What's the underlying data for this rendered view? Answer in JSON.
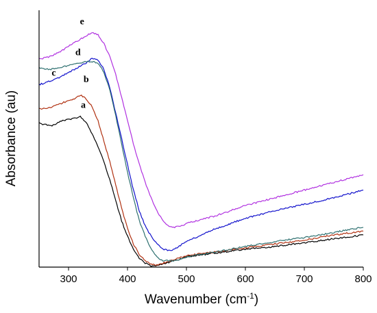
{
  "chart_data": {
    "type": "line",
    "title": "",
    "xlabel_main": "Wavenumber (cm",
    "xlabel_sup": "-1",
    "xlabel_end": ")",
    "ylabel": "Absorbance (au)",
    "xlim": [
      250,
      800
    ],
    "ylim": [
      0,
      1
    ],
    "y_ticks_shown": false,
    "xticks": [
      300,
      400,
      500,
      600,
      700,
      800
    ],
    "grid": false,
    "legend": "none",
    "series": [
      {
        "name": "a",
        "color": "#000000",
        "x": [
          250,
          270,
          290,
          310,
          320,
          330,
          340,
          350,
          360,
          370,
          380,
          390,
          400,
          410,
          420,
          430,
          440,
          450,
          460,
          480,
          500,
          550,
          600,
          650,
          700,
          750,
          800
        ],
        "y": [
          0.56,
          0.55,
          0.57,
          0.58,
          0.585,
          0.565,
          0.52,
          0.47,
          0.41,
          0.34,
          0.26,
          0.18,
          0.12,
          0.07,
          0.035,
          0.015,
          0.005,
          0.005,
          0.012,
          0.025,
          0.04,
          0.055,
          0.07,
          0.08,
          0.095,
          0.11,
          0.125
        ]
      },
      {
        "name": "b",
        "color": "#b03010",
        "x": [
          250,
          270,
          290,
          310,
          320,
          330,
          340,
          350,
          360,
          370,
          380,
          390,
          400,
          410,
          420,
          430,
          440,
          450,
          460,
          480,
          500,
          550,
          600,
          650,
          700,
          750,
          800
        ],
        "y": [
          0.615,
          0.62,
          0.64,
          0.655,
          0.67,
          0.655,
          0.625,
          0.57,
          0.49,
          0.41,
          0.32,
          0.23,
          0.15,
          0.09,
          0.05,
          0.025,
          0.01,
          0.008,
          0.015,
          0.03,
          0.045,
          0.06,
          0.075,
          0.09,
          0.105,
          0.125,
          0.14
        ]
      },
      {
        "name": "c",
        "color": "#1010cc",
        "x": [
          250,
          270,
          290,
          310,
          330,
          340,
          350,
          360,
          370,
          380,
          390,
          400,
          410,
          420,
          430,
          440,
          450,
          460,
          470,
          480,
          490,
          500,
          550,
          600,
          650,
          700,
          750,
          800
        ],
        "y": [
          0.71,
          0.725,
          0.745,
          0.77,
          0.795,
          0.815,
          0.805,
          0.77,
          0.7,
          0.6,
          0.5,
          0.4,
          0.3,
          0.22,
          0.16,
          0.12,
          0.09,
          0.07,
          0.065,
          0.07,
          0.085,
          0.1,
          0.15,
          0.19,
          0.22,
          0.245,
          0.27,
          0.3
        ]
      },
      {
        "name": "d",
        "color": "#2e7070",
        "x": [
          250,
          270,
          290,
          310,
          330,
          340,
          350,
          360,
          370,
          380,
          390,
          400,
          410,
          420,
          430,
          440,
          450,
          460,
          480,
          500,
          550,
          600,
          650,
          700,
          750,
          800
        ],
        "y": [
          0.775,
          0.77,
          0.78,
          0.79,
          0.8,
          0.8,
          0.795,
          0.76,
          0.69,
          0.59,
          0.48,
          0.37,
          0.27,
          0.18,
          0.12,
          0.07,
          0.04,
          0.025,
          0.025,
          0.04,
          0.06,
          0.08,
          0.1,
          0.115,
          0.135,
          0.155
        ]
      },
      {
        "name": "e",
        "color": "#b030e0",
        "x": [
          250,
          270,
          290,
          310,
          330,
          340,
          350,
          360,
          370,
          380,
          390,
          400,
          410,
          420,
          430,
          440,
          450,
          460,
          470,
          480,
          490,
          500,
          550,
          600,
          650,
          700,
          750,
          800
        ],
        "y": [
          0.81,
          0.82,
          0.845,
          0.875,
          0.9,
          0.915,
          0.905,
          0.87,
          0.82,
          0.75,
          0.66,
          0.57,
          0.48,
          0.4,
          0.33,
          0.27,
          0.22,
          0.18,
          0.16,
          0.155,
          0.16,
          0.17,
          0.2,
          0.24,
          0.27,
          0.3,
          0.33,
          0.36
        ]
      }
    ],
    "annotations": [
      {
        "text": "a",
        "x": 325,
        "y": 0.62
      },
      {
        "text": "b",
        "x": 330,
        "y": 0.72
      },
      {
        "text": "c",
        "x": 275,
        "y": 0.745
      },
      {
        "text": "d",
        "x": 316,
        "y": 0.825
      },
      {
        "text": "e",
        "x": 323,
        "y": 0.945
      }
    ]
  }
}
